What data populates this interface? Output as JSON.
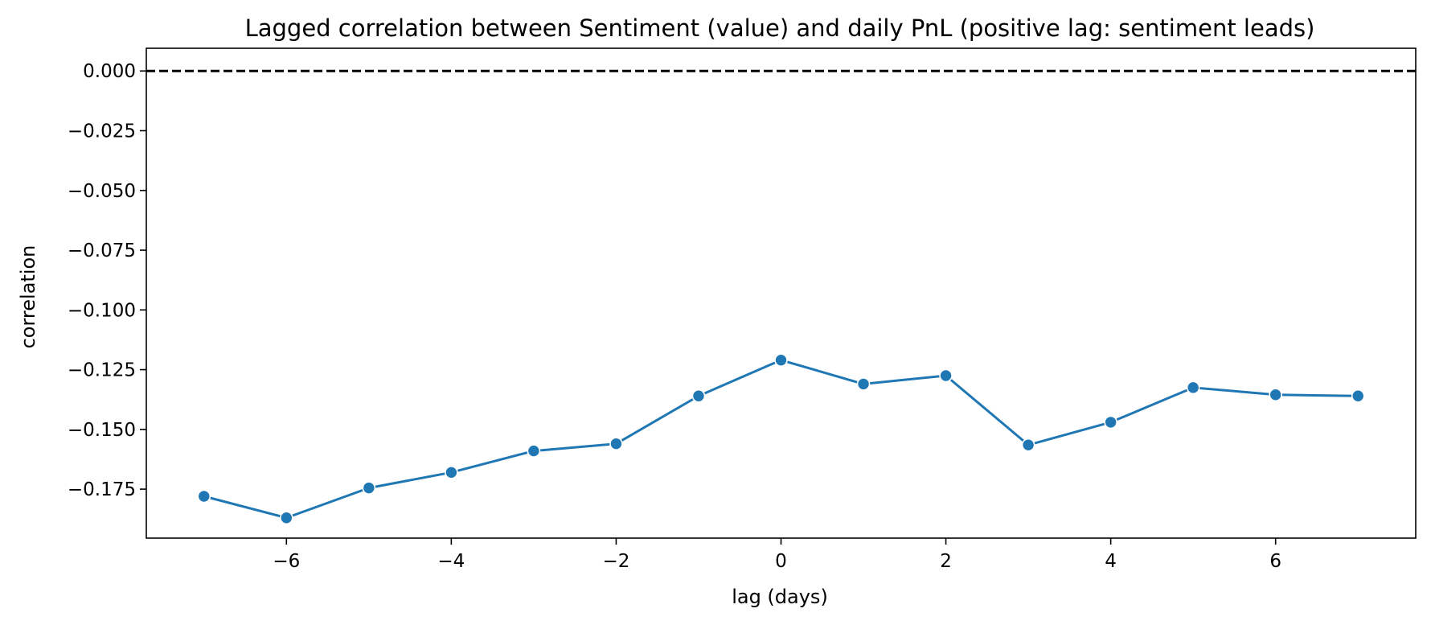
{
  "chart_data": {
    "type": "line",
    "title": "Lagged correlation between Sentiment (value) and daily PnL (positive lag: sentiment leads)",
    "xlabel": "lag (days)",
    "ylabel": "correlation",
    "x": [
      -7,
      -6,
      -5,
      -4,
      -3,
      -2,
      -1,
      0,
      1,
      2,
      3,
      4,
      5,
      6,
      7
    ],
    "series": [
      {
        "color": "#1f77b4",
        "marker": "circle",
        "values": [
          -0.178,
          -0.187,
          -0.1745,
          -0.168,
          -0.159,
          -0.156,
          -0.136,
          -0.121,
          -0.131,
          -0.1275,
          -0.1565,
          -0.147,
          -0.1325,
          -0.1355,
          -0.136
        ]
      }
    ],
    "reference_line": {
      "y": 0.0,
      "style": "dashed",
      "color": "#000000"
    },
    "xlim": [
      -7.7,
      7.7
    ],
    "ylim": [
      -0.1955,
      0.0095
    ],
    "xticks": [
      -6,
      -4,
      -2,
      0,
      2,
      4,
      6
    ],
    "xtick_labels": [
      "−6",
      "−4",
      "−2",
      "0",
      "2",
      "4",
      "6"
    ],
    "yticks": [
      0.0,
      -0.025,
      -0.05,
      -0.075,
      -0.1,
      -0.125,
      -0.15,
      -0.175
    ],
    "ytick_labels": [
      "0.000",
      "−0.025",
      "−0.050",
      "−0.075",
      "−0.100",
      "−0.125",
      "−0.150",
      "−0.175"
    ],
    "grid": false,
    "legend": "none"
  }
}
